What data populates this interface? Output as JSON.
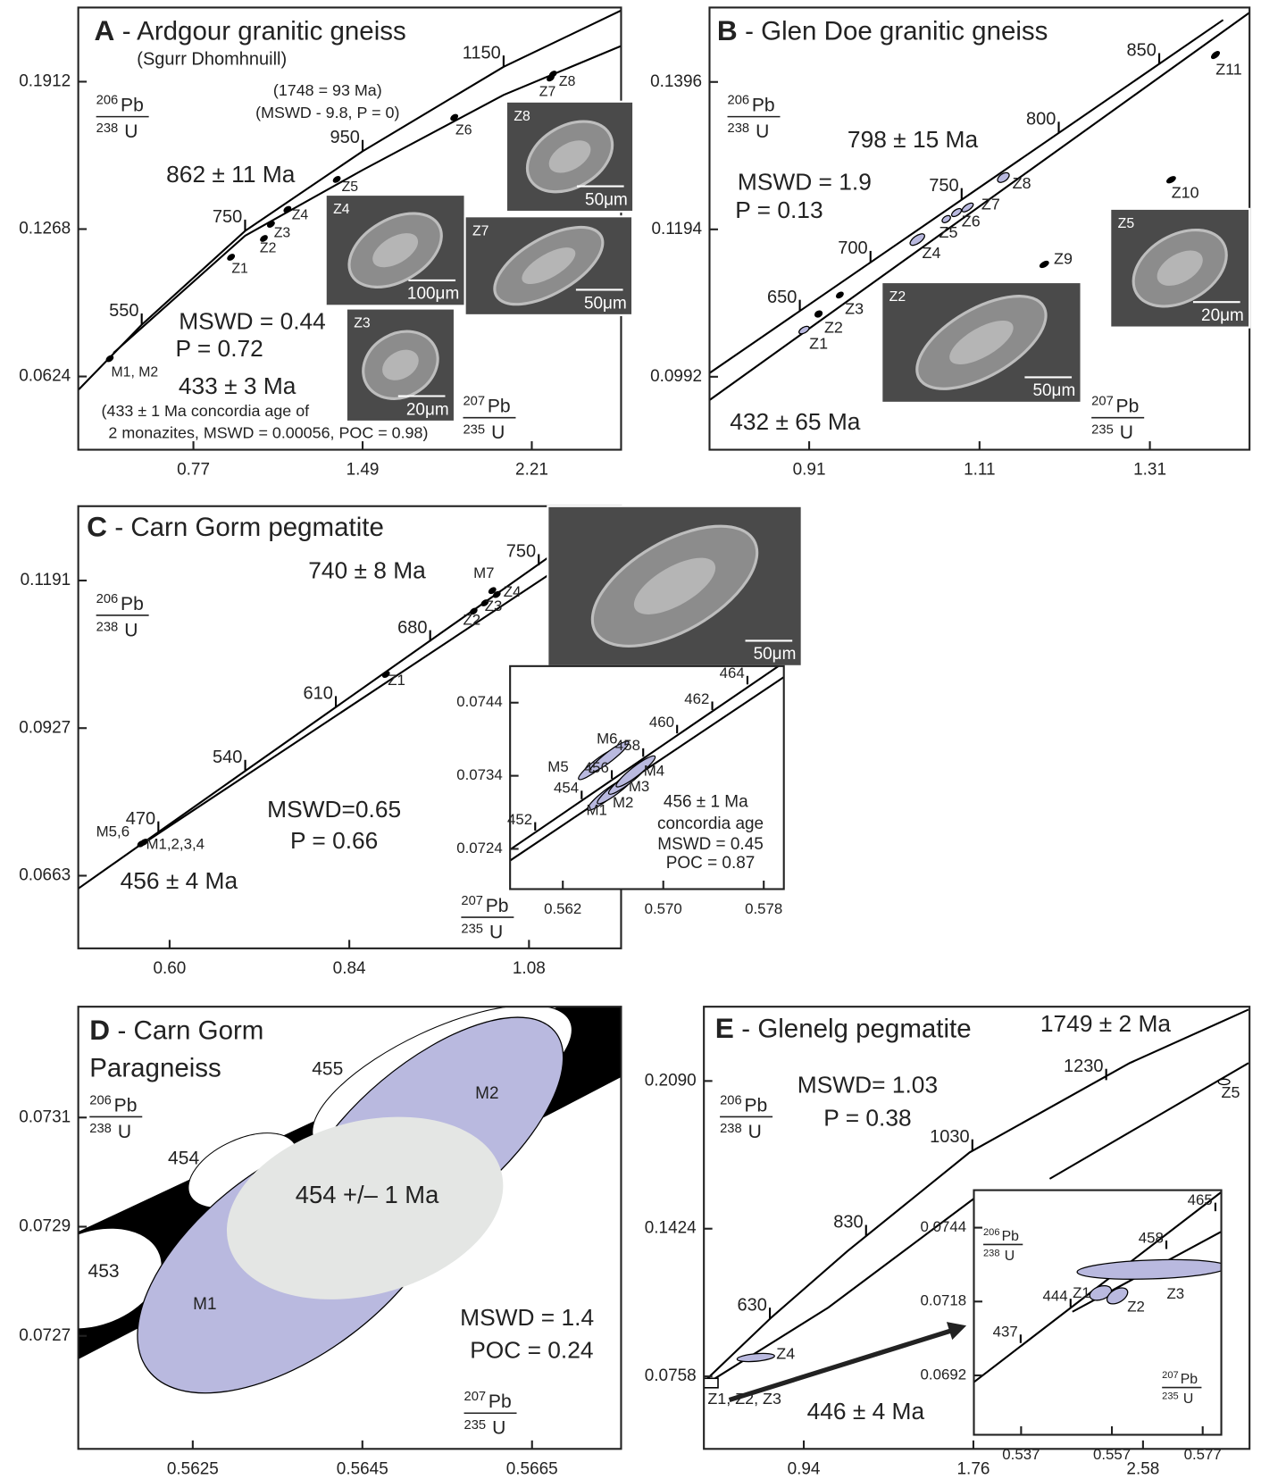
{
  "chart_data": [
    {
      "type": "concordia",
      "panel": "A",
      "title": "- Ardgour granitic gneiss",
      "subtitle": "(Sgurr Dhomhnuill)",
      "x_label": {
        "num_mass": "207",
        "num_element": "Pb",
        "den_mass": "235",
        "den_element": "U"
      },
      "y_label": {
        "num_mass": "206",
        "num_element": "Pb",
        "den_mass": "238",
        "den_element": "U"
      },
      "xlim": [
        0.28,
        2.59
      ],
      "ylim": [
        0.0304,
        0.2236
      ],
      "xticks": [
        0.77,
        1.49,
        2.21
      ],
      "yticks": [
        0.0624,
        0.1268,
        0.1912
      ],
      "lines": [
        {
          "x": [
            0.282,
            0.55,
            0.99,
            1.49,
            2.09,
            2.59
          ],
          "y": [
            0.0567,
            0.085,
            0.126,
            0.1608,
            0.1977,
            0.2223
          ]
        },
        {
          "x": [
            0.43,
            0.99,
            1.49,
            2.09,
            2.59
          ],
          "y": [
            0.0727,
            0.1239,
            0.1526,
            0.1854,
            0.2068
          ]
        }
      ],
      "age_ticks": [
        {
          "age": 550,
          "x": 0.55,
          "y": 0.085
        },
        {
          "age": 750,
          "x": 0.99,
          "y": 0.126
        },
        {
          "age": 950,
          "x": 1.49,
          "y": 0.1608
        },
        {
          "age": 1150,
          "x": 2.09,
          "y": 0.1977
        }
      ],
      "points": [
        {
          "name": "M1, M2",
          "x": 0.414,
          "y": 0.0702,
          "color": "#000000"
        },
        {
          "name": "Z1",
          "x": 0.93,
          "y": 0.1145,
          "color": "#000000"
        },
        {
          "name": "Z2",
          "x": 1.07,
          "y": 0.1227,
          "color": "#000000"
        },
        {
          "name": "Z3",
          "x": 1.1,
          "y": 0.1289,
          "color": "#000000"
        },
        {
          "name": "Z4",
          "x": 1.17,
          "y": 0.1354,
          "color": "#000000"
        },
        {
          "name": "Z5",
          "x": 1.38,
          "y": 0.1485,
          "color": "#000000"
        },
        {
          "name": "Z6",
          "x": 1.88,
          "y": 0.1756,
          "color": "#000000"
        },
        {
          "name": "Z7",
          "x": 2.29,
          "y": 0.1928,
          "color": "#000000"
        },
        {
          "name": "Z8",
          "x": 2.3,
          "y": 0.1945,
          "color": "#000000"
        }
      ],
      "annotations": [
        "(1748 = 93 Ma)",
        "(MSWD - 9.8, P = 0)",
        "862 ± 11 Ma",
        "MSWD = 0.44",
        "P = 0.72",
        "433 ± 3 Ma",
        "(433 ± 1 Ma concordia age of",
        "2 monazites, MSWD = 0.00056, POC = 0.98)"
      ],
      "images": [
        {
          "label": "Z8",
          "scale": "50μm"
        },
        {
          "label": "Z4",
          "scale": "100μm"
        },
        {
          "label": "Z7",
          "scale": "50μm"
        },
        {
          "label": "Z3",
          "scale": "20μm"
        }
      ]
    },
    {
      "type": "concordia",
      "panel": "B",
      "title": "- Glen Doe granitic gneiss",
      "x_label": {
        "num_mass": "207",
        "num_element": "Pb",
        "den_mass": "235",
        "den_element": "U"
      },
      "y_label": {
        "num_mass": "206",
        "num_element": "Pb",
        "den_mass": "238",
        "den_element": "U"
      },
      "xlim": [
        0.793,
        1.427
      ],
      "ylim": [
        0.0892,
        0.1498
      ],
      "xticks": [
        0.91,
        1.11,
        1.31
      ],
      "yticks": [
        0.0992,
        0.1194,
        0.1396
      ],
      "lines": [
        {
          "x": [
            0.793,
            1.396
          ],
          "y": [
            0.0997,
            0.1481
          ]
        },
        {
          "x": [
            0.793,
            1.427
          ],
          "y": [
            0.096,
            0.1491
          ]
        }
      ],
      "age_ticks": [
        {
          "age": 650,
          "x": 0.899,
          "y": 0.1082
        },
        {
          "age": 700,
          "x": 0.982,
          "y": 0.1149
        },
        {
          "age": 750,
          "x": 1.089,
          "y": 0.1235
        },
        {
          "age": 800,
          "x": 1.203,
          "y": 0.1326
        },
        {
          "age": 850,
          "x": 1.321,
          "y": 0.142
        }
      ],
      "points": [
        {
          "name": "Z1",
          "x": 0.904,
          "y": 0.1056,
          "color": "#b9b9df"
        },
        {
          "name": "Z2",
          "x": 0.921,
          "y": 0.1078,
          "color": "#000000"
        },
        {
          "name": "Z3",
          "x": 0.946,
          "y": 0.1104,
          "color": "#000000"
        },
        {
          "name": "Z4",
          "x": 1.037,
          "y": 0.118,
          "color": "#b9b9df"
        },
        {
          "name": "Z5",
          "x": 1.071,
          "y": 0.1208,
          "color": "#b9b9df"
        },
        {
          "name": "Z6",
          "x": 1.083,
          "y": 0.1217,
          "color": "#b9b9df"
        },
        {
          "name": "Z7",
          "x": 1.096,
          "y": 0.1224,
          "color": "#b9b9df"
        },
        {
          "name": "Z8",
          "x": 1.138,
          "y": 0.1265,
          "color": "#b9b9df"
        },
        {
          "name": "Z9",
          "x": 1.186,
          "y": 0.1146,
          "color": "#000000"
        },
        {
          "name": "Z10",
          "x": 1.335,
          "y": 0.1262,
          "color": "#000000"
        },
        {
          "name": "Z11",
          "x": 1.387,
          "y": 0.1433,
          "color": "#000000"
        }
      ],
      "annotations": [
        "798 ± 15 Ma",
        "MSWD = 1.9",
        "P = 0.13",
        "432 ± 65 Ma"
      ],
      "images": [
        {
          "label": "Z2",
          "scale": "50μm"
        },
        {
          "label": "Z5",
          "scale": "20μm"
        }
      ]
    },
    {
      "type": "concordia",
      "panel": "C",
      "title": "- Carn Gorm pegmatite",
      "x_label": {
        "num_mass": "207",
        "num_element": "Pb",
        "den_mass": "235",
        "den_element": "U"
      },
      "y_label": {
        "num_mass": "206",
        "num_element": "Pb",
        "den_mass": "238",
        "den_element": "U"
      },
      "xlim": [
        0.478,
        1.203
      ],
      "ylim": [
        0.0533,
        0.1324
      ],
      "xticks": [
        {
          "value": 0.6,
          "label": "0.60"
        },
        0.84,
        1.08
      ],
      "yticks": [
        0.0663,
        0.0927,
        0.1191
      ],
      "lines": [
        {
          "x": [
            0.478,
            1.203
          ],
          "y": [
            0.064,
            0.1324
          ]
        },
        {
          "x": [
            0.562,
            1.203
          ],
          "y": [
            0.0718,
            0.1287
          ]
        }
      ],
      "age_ticks": [
        {
          "age": 470,
          "x": 0.585,
          "y": 0.074
        },
        {
          "age": 540,
          "x": 0.701,
          "y": 0.085
        },
        {
          "age": 610,
          "x": 0.822,
          "y": 0.0964
        },
        {
          "age": 680,
          "x": 0.948,
          "y": 0.1082
        },
        {
          "age": 750,
          "x": 1.093,
          "y": 0.1218
        }
      ],
      "points": [
        {
          "name": "M5,6",
          "x": 0.562,
          "y": 0.072,
          "color": "#000000"
        },
        {
          "name": "M1,2,3,4",
          "x": 0.566,
          "y": 0.0723,
          "color": "#000000"
        },
        {
          "name": "Z1",
          "x": 0.889,
          "y": 0.1023,
          "color": "#000000"
        },
        {
          "name": "Z2",
          "x": 1.006,
          "y": 0.1136,
          "color": "#000000"
        },
        {
          "name": "Z3",
          "x": 1.021,
          "y": 0.1151,
          "color": "#000000"
        },
        {
          "name": "Z4",
          "x": 1.037,
          "y": 0.1166,
          "color": "#000000"
        },
        {
          "name": "M7",
          "x": 1.031,
          "y": 0.1173,
          "color": "#000000"
        }
      ],
      "annotations": [
        "740 ± 8 Ma",
        "MSWD=0.65",
        "P = 0.66",
        "456 ± 4 Ma"
      ],
      "images": [
        {
          "scale": "50μm"
        }
      ]
    },
    {
      "type": "concordia",
      "inset": true,
      "xlim": [
        0.5578,
        0.5796
      ],
      "ylim": [
        0.07185,
        0.0749
      ],
      "xticks": [
        0.562,
        {
          "value": 0.57,
          "label": "0.570"
        },
        0.578
      ],
      "yticks": [
        0.0724,
        0.0734,
        0.0744
      ],
      "lines": [
        {
          "x": [
            0.5578,
            0.5796
          ],
          "y": [
            0.07239,
            0.07495
          ]
        },
        {
          "x": [
            0.5578,
            0.5796
          ],
          "y": [
            0.07224,
            0.07475
          ]
        }
      ],
      "age_ticks": [
        {
          "age": 452,
          "x": 0.5598,
          "y": 0.07265
        },
        {
          "age": 454,
          "x": 0.5635,
          "y": 0.07308
        },
        {
          "age": 456,
          "x": 0.5659,
          "y": 0.07336
        },
        {
          "age": 458,
          "x": 0.5684,
          "y": 0.07366
        },
        {
          "age": 460,
          "x": 0.5711,
          "y": 0.07398
        },
        {
          "age": 462,
          "x": 0.5739,
          "y": 0.0743
        },
        {
          "age": 464,
          "x": 0.5767,
          "y": 0.07465
        }
      ],
      "points": [
        {
          "name": "M5",
          "x": 0.5648,
          "y": 0.07356,
          "color": "#b9b9df"
        },
        {
          "name": "M6",
          "x": 0.5657,
          "y": 0.07366,
          "color": "#b9b9df"
        },
        {
          "name": "M1",
          "x": 0.5655,
          "y": 0.07314,
          "color": "#b9b9df"
        },
        {
          "name": "M2",
          "x": 0.5663,
          "y": 0.07323,
          "color": "#b9b9df"
        },
        {
          "name": "M3",
          "x": 0.5672,
          "y": 0.07336,
          "color": "#b9b9df"
        },
        {
          "name": "M4",
          "x": 0.5678,
          "y": 0.07346,
          "color": "#b9b9df"
        }
      ],
      "annotations": [
        "456 ± 1 Ma",
        "concordia age",
        "MSWD = 0.45",
        "POC = 0.87"
      ]
    },
    {
      "type": "concordia",
      "panel": "D",
      "title": "- Carn Gorm",
      "title_line2": "Paragneiss",
      "x_label": {
        "num_mass": "207",
        "num_element": "Pb",
        "den_mass": "235",
        "den_element": "U"
      },
      "y_label": {
        "num_mass": "206",
        "num_element": "Pb",
        "den_mass": "238",
        "den_element": "U"
      },
      "xlim": [
        0.56115,
        0.56755
      ],
      "ylim": [
        0.072493,
        0.073303
      ],
      "xticks": [
        0.5625,
        0.5645,
        0.5665
      ],
      "yticks": [
        0.0727,
        0.0729,
        0.0731
      ],
      "band": {
        "upper": {
          "x": [
            0.56115,
            0.56755
          ],
          "y": [
            0.072891,
            0.073357
          ]
        },
        "lower": {
          "x": [
            0.56115,
            0.56755
          ],
          "y": [
            0.072657,
            0.073174
          ]
        }
      },
      "age_ellipses": [
        {
          "age": 453,
          "x": 0.56133,
          "y": 0.072805
        },
        {
          "age": 454,
          "x": 0.56309,
          "y": 0.073003
        },
        {
          "age": 455,
          "x": 0.56544,
          "y": 0.073167
        }
      ],
      "points": [
        {
          "name": "M2",
          "x": 0.56528,
          "y": 0.073064,
          "color": "#b9b9df"
        },
        {
          "name": "M1",
          "x": 0.5637,
          "y": 0.07284,
          "color": "#b9b9df"
        }
      ],
      "concordia_age": {
        "label": "454 +/– 1 Ma",
        "x": 0.56453,
        "y": 0.072934,
        "color": "#e4e6e4"
      },
      "annotations": [
        "MSWD = 1.4",
        "POC = 0.24"
      ]
    },
    {
      "type": "concordia",
      "panel": "E",
      "title": "- Glenelg pegmatite",
      "y_label": {
        "num_mass": "206",
        "num_element": "Pb",
        "den_mass": "238",
        "den_element": "U"
      },
      "xlim": [
        0.457,
        3.095
      ],
      "ylim": [
        0.0431,
        0.2425
      ],
      "xticks": [
        0.94,
        1.76,
        2.58
      ],
      "yticks": [
        0.0758,
        0.1424,
        {
          "value": 0.209,
          "label": "0.2090"
        }
      ],
      "lines": [
        {
          "x": [
            0.466,
            0.785,
            1.15,
            1.742,
            2.516,
            3.09
          ],
          "y": [
            0.0741,
            0.1025,
            0.1322,
            0.1768,
            0.2171,
            0.2412
          ]
        },
        {
          "x": [
            0.475,
            1.058,
            1.787,
            null,
            2.129,
            3.09
          ],
          "y": [
            0.0728,
            0.1068,
            0.1577,
            null,
            0.1649,
            0.2171
          ]
        }
      ],
      "age_ticks": [
        {
          "age": 630,
          "x": 0.776,
          "y": 0.1017
        },
        {
          "age": 830,
          "x": 1.241,
          "y": 0.139
        },
        {
          "age": 1030,
          "x": 1.755,
          "y": 0.1776
        },
        {
          "age": 1230,
          "x": 2.402,
          "y": 0.2094
        }
      ],
      "points": [
        {
          "name": "Z1, Z2, Z3",
          "x": 0.489,
          "y": 0.0728,
          "color": "#ffffff"
        },
        {
          "name": "Z4",
          "x": 0.708,
          "y": 0.0843,
          "color": "#b9b9df"
        },
        {
          "name": "Z5",
          "x": 2.972,
          "y": 0.2086,
          "color": "#ffffff"
        }
      ],
      "annotations": [
        "1749 ± 2 Ma",
        "MSWD= 1.03",
        "P = 0.38",
        "446 ± 4 Ma"
      ]
    },
    {
      "type": "concordia",
      "inset": true,
      "x_label": {
        "num_mass": "207",
        "num_element": "Pb",
        "den_mass": "235",
        "den_element": "U"
      },
      "y_label": {
        "num_mass": "206",
        "num_element": "Pb",
        "den_mass": "238",
        "den_element": "U"
      },
      "xlim": [
        0.5266,
        0.5811
      ],
      "ylim": [
        0.06711,
        0.07572
      ],
      "xticks": [
        0.537,
        0.557,
        0.577
      ],
      "yticks": [
        0.0692,
        0.0718,
        0.0744
      ],
      "lines": [
        {
          "x": [
            0.5265,
            0.581
          ],
          "y": [
            0.06895,
            0.07564
          ]
        },
        {
          "x": [
            0.5483,
            0.581
          ],
          "y": [
            0.07144,
            0.07425
          ]
        }
      ],
      "age_ticks": [
        {
          "age": 437,
          "x": 0.5369,
          "y": 0.07034
        },
        {
          "age": 444,
          "x": 0.5479,
          "y": 0.0716
        },
        {
          "age": 458,
          "x": 0.569,
          "y": 0.07365
        },
        {
          "age": 465,
          "x": 0.5798,
          "y": 0.07498
        }
      ],
      "points": [
        {
          "name": "Z3",
          "x": 0.5659,
          "y": 0.07293,
          "color": "#b9b9df"
        },
        {
          "name": "Z1",
          "x": 0.5545,
          "y": 0.0721,
          "color": "#b9b9df"
        },
        {
          "name": "Z2",
          "x": 0.5582,
          "y": 0.072,
          "color": "#b9b9df"
        }
      ]
    }
  ]
}
